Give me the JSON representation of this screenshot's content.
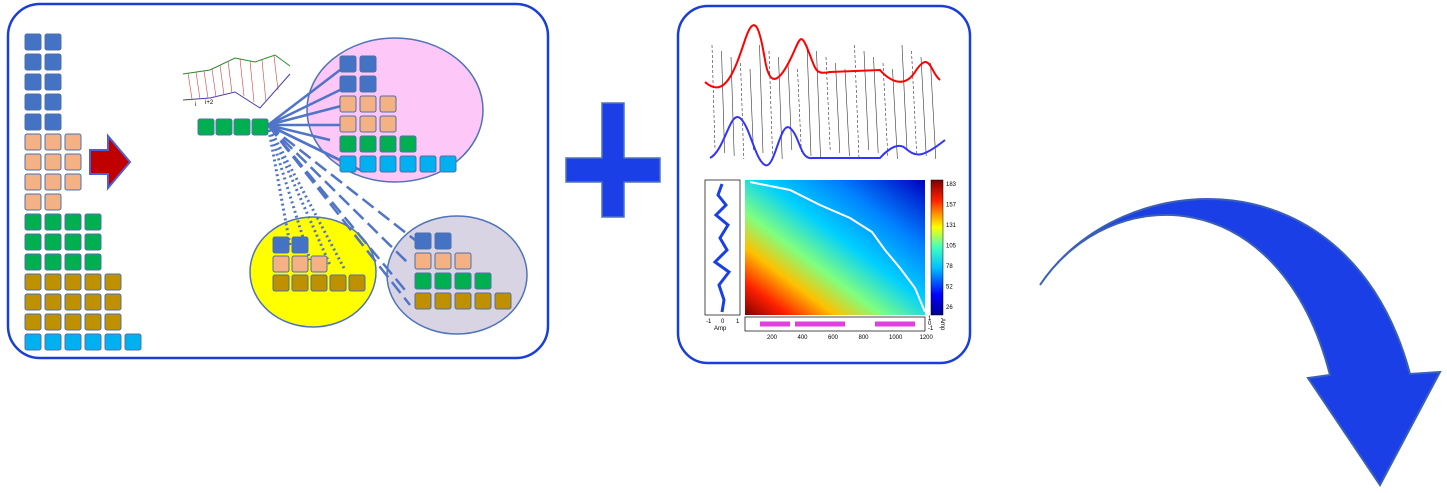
{
  "mini_chart": {
    "labels": [
      "i",
      "i+2"
    ]
  },
  "heatmap": {
    "colorbar_ticks": [
      "183",
      "157",
      "131",
      "105",
      "78",
      "52",
      "26"
    ],
    "left_axis_ticks": [
      "-1",
      "0",
      "1"
    ],
    "left_axis_label": "Amp",
    "x_ticks": [
      "200",
      "400",
      "600",
      "800",
      "1000",
      "1200"
    ],
    "right_axis_ticks": [
      "1",
      "0",
      "-1"
    ],
    "right_axis_label": "Amp"
  }
}
